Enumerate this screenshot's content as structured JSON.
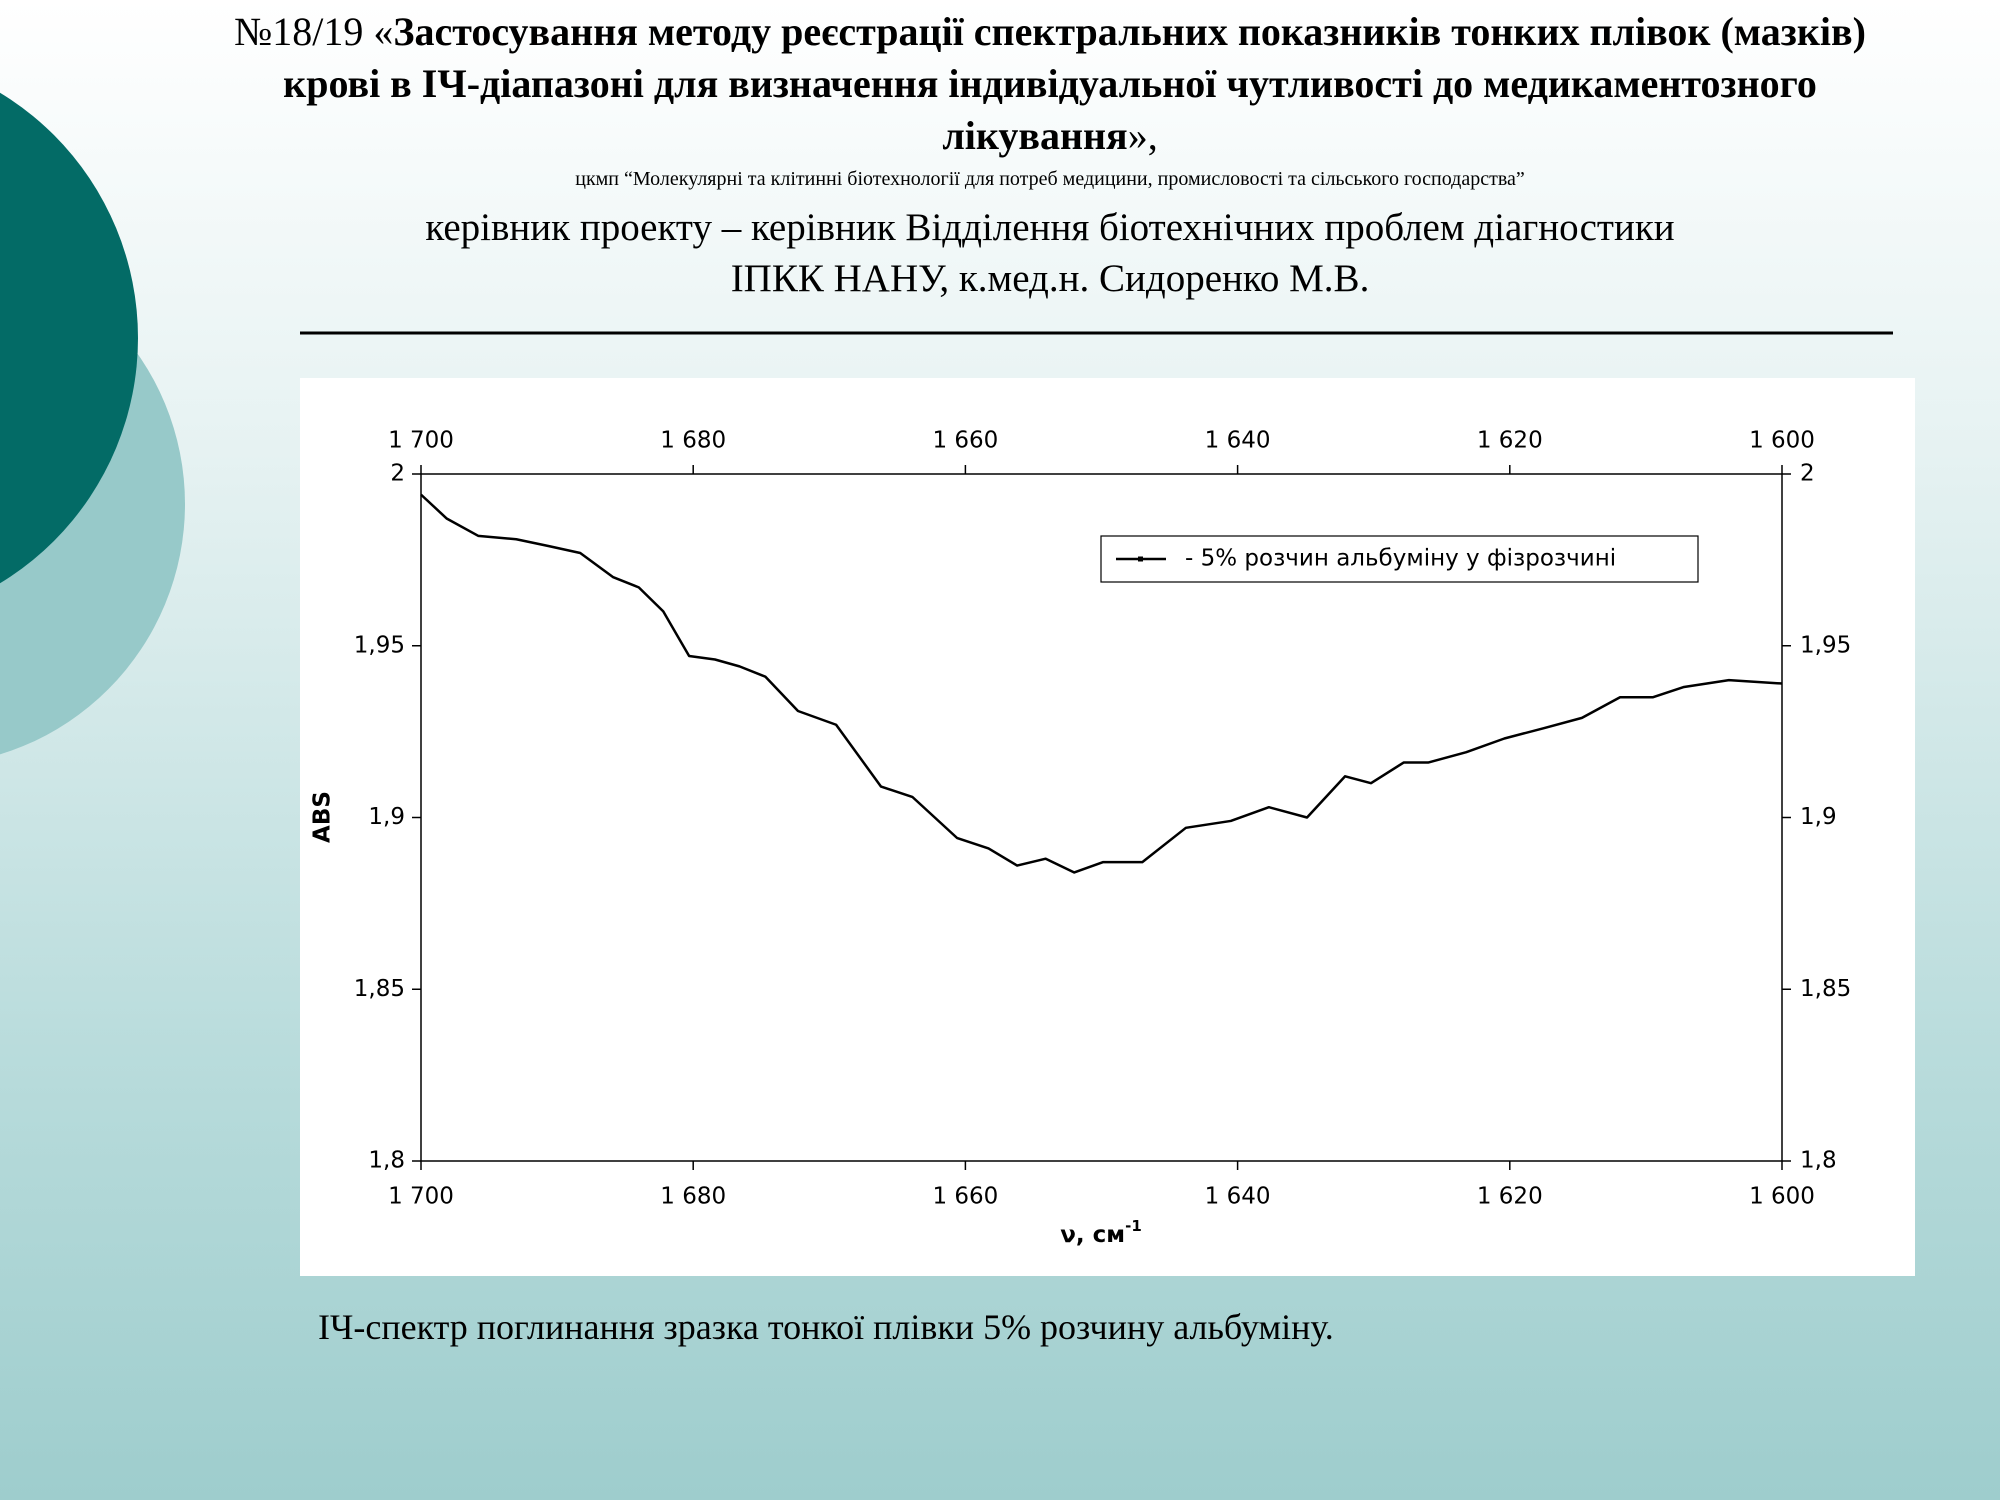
{
  "slide": {
    "title_prefix": "№18/19 «",
    "title": "Застосування методу реєстрації спектральних показників тонких плівок (мазків) крові в ІЧ-діапазоні для визначення індивідуальної чутливості до медикаментозного лікування",
    "title_suffix": "»,",
    "organization": "цкмп “Молекулярні та клітинні біотехнології для потреб медицини, промисловості та сільського господарства”",
    "leader_line_1": "керівник проекту – керівник Відділення біотехнічних проблем діагностики",
    "leader_line_2": "ІПКК НАНУ, к.мед.н. Сидоренко М.В.",
    "caption": "ІЧ-спектр поглинання зразка тонкої плівки 5% розчину альбуміну."
  },
  "chart_data": {
    "type": "line",
    "x_label": "ν, см",
    "x_label_superscript": "-1",
    "y_label": "ABS",
    "x": [
      1700,
      1698.1,
      1695.8,
      1693,
      1690.6,
      1688.3,
      1685.9,
      1684,
      1682.2,
      1680.3,
      1678.4,
      1676.6,
      1674.7,
      1672.3,
      1669.5,
      1666.2,
      1663.9,
      1660.6,
      1658.3,
      1656.2,
      1654.1,
      1652,
      1649.9,
      1647,
      1643.8,
      1640.5,
      1637.7,
      1634.9,
      1632.1,
      1630.2,
      1627.8,
      1626,
      1623.2,
      1620.4,
      1617.5,
      1614.7,
      1611.9,
      1609.5,
      1607.2,
      1603.9,
      1600
    ],
    "series": [
      {
        "name": "- 5% розчин альбуміну у фізрозчині",
        "color": "#000000",
        "values": [
          1.994,
          1.987,
          1.982,
          1.981,
          1.979,
          1.977,
          1.97,
          1.967,
          1.96,
          1.947,
          1.946,
          1.944,
          1.941,
          1.931,
          1.927,
          1.909,
          1.906,
          1.894,
          1.891,
          1.886,
          1.888,
          1.884,
          1.887,
          1.887,
          1.897,
          1.899,
          1.903,
          1.9,
          1.912,
          1.91,
          1.916,
          1.916,
          1.919,
          1.923,
          1.926,
          1.929,
          1.935,
          1.935,
          1.938,
          1.94,
          1.939
        ]
      }
    ],
    "xlim": [
      1700,
      1600
    ],
    "ylim": [
      1.8,
      2
    ],
    "xticks": [
      {
        "value": 1700,
        "label": "1 700"
      },
      {
        "value": 1680,
        "label": "1 680"
      },
      {
        "value": 1660,
        "label": "1 660"
      },
      {
        "value": 1640,
        "label": "1 640"
      },
      {
        "value": 1620,
        "label": "1 620"
      },
      {
        "value": 1600,
        "label": "1 600"
      }
    ],
    "yticks": [
      {
        "value": 1.8,
        "label": "1,8"
      },
      {
        "value": 1.85,
        "label": "1,85"
      },
      {
        "value": 1.9,
        "label": "1,9"
      },
      {
        "value": 1.95,
        "label": "1,95"
      },
      2
    ],
    "legend": "upper right",
    "grid": false
  }
}
